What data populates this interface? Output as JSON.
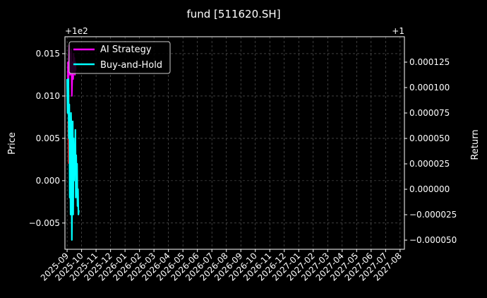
{
  "chart_data": {
    "type": "line",
    "title": "fund [511620.SH]",
    "xlabel": "",
    "ylabel": "Price",
    "y2label": "Return",
    "y_offset_label": "+1e2",
    "y2_offset_label": "+1",
    "x_ticks": [
      "2025-09",
      "2025-10",
      "2025-11",
      "2025-12",
      "2026-01",
      "2026-02",
      "2026-03",
      "2026-04",
      "2026-05",
      "2026-06",
      "2026-07",
      "2026-08",
      "2026-09",
      "2026-10",
      "2026-11",
      "2026-12",
      "2027-01",
      "2027-02",
      "2027-03",
      "2027-04",
      "2027-05",
      "2027-06",
      "2027-07",
      "2027-08"
    ],
    "y_ticks": [
      "−0.005",
      "0.000",
      "0.005",
      "0.010",
      "0.015"
    ],
    "y2_ticks": [
      "−0.000050",
      "−0.000025",
      "0.000000",
      "0.000025",
      "0.000050",
      "0.000075",
      "0.000100",
      "0.000125"
    ],
    "xlim": [
      -0.15,
      23.3
    ],
    "ylim": [
      -0.0081,
      0.017
    ],
    "y2lim": [
      -5.9e-05,
      0.00015
    ],
    "grid": true,
    "legend_position": "top-left",
    "colors": {
      "ai": "#ff00ff",
      "bh": "#00ffff",
      "red": "#dd0000",
      "background": "#000000",
      "grid": "#666666"
    },
    "series": [
      {
        "name": "AI Strategy",
        "color": "#ff00ff",
        "x": [
          0.0,
          0.03,
          0.06,
          0.09,
          0.12,
          0.15,
          0.18,
          0.21,
          0.24,
          0.27,
          0.3,
          0.33,
          0.36,
          0.39,
          0.42,
          0.45,
          0.48,
          0.51,
          0.54,
          0.57,
          0.6
        ],
        "y": [
          0.012,
          0.0085,
          0.014,
          0.01,
          0.0135,
          0.016,
          0.015,
          0.0125,
          0.015,
          0.013,
          0.0155,
          0.01,
          0.0125,
          0.014,
          0.012,
          0.015,
          0.0135,
          0.0145,
          0.0125,
          0.014,
          0.013
        ]
      },
      {
        "name": "Buy-and-Hold",
        "color": "#00ffff",
        "x": [
          0.0,
          0.03,
          0.06,
          0.09,
          0.12,
          0.15,
          0.18,
          0.21,
          0.24,
          0.27,
          0.3,
          0.33,
          0.36,
          0.39,
          0.42,
          0.45,
          0.48,
          0.51,
          0.54,
          0.57,
          0.6,
          0.63,
          0.66,
          0.69,
          0.72,
          0.75,
          0.78,
          0.81
        ],
        "y": [
          0.012,
          0.008,
          0.01,
          0.012,
          0.005,
          0.009,
          -0.002,
          0.003,
          -0.004,
          0.008,
          0.006,
          -0.007,
          0.002,
          0.007,
          -0.004,
          0.005,
          0.0,
          0.004,
          0.001,
          0.006,
          -0.002,
          0.003,
          -0.001,
          0.002,
          -0.003,
          -0.001,
          -0.004,
          -0.0035
        ]
      }
    ]
  }
}
